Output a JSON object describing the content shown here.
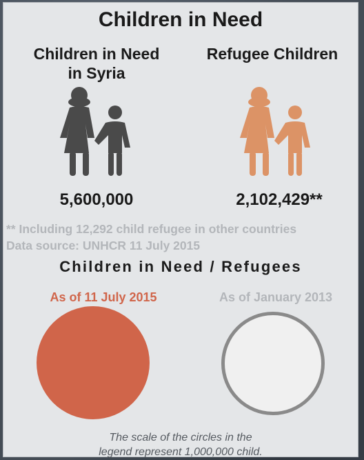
{
  "title": "Children in Need",
  "left_column": {
    "heading_line1": "Children in Need",
    "heading_line2": "in Syria",
    "count": "5,600,000",
    "icon": "mother-and-child-icon",
    "color": "#4a4a4a"
  },
  "right_column": {
    "heading": "Refugee Children",
    "count": "2,102,429**",
    "icon": "mother-and-child-icon",
    "color": "#dc9366"
  },
  "notes": {
    "asterisk_note": "** Including 12,292 child refugee in other countries",
    "source": "Data source: UNHCR 11 July 2015"
  },
  "comparison": {
    "title": "Children in Need / Refugees",
    "left_label": "As of  11 July 2015",
    "left_label_color": "#d0654a",
    "left_circle_color": "#d0654a",
    "right_label": "As of January 2013",
    "right_label_color": "#b3b6ba",
    "right_circle_fill": "#f0f0f0",
    "right_circle_border": "#8a8a8a"
  },
  "footnote_line1": "The scale of the circles in the",
  "footnote_line2": "legend represent 1,000,000 child."
}
